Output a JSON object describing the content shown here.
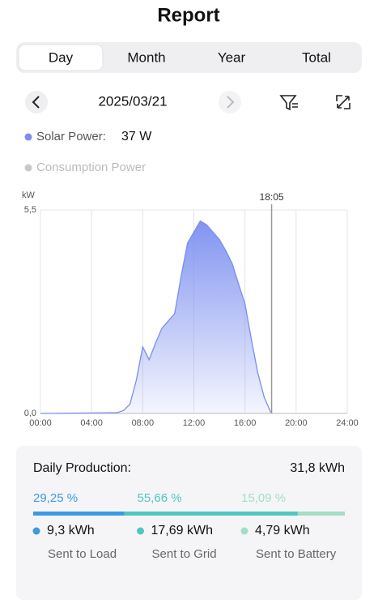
{
  "header": {
    "title": "Report"
  },
  "tabs": [
    "Day",
    "Month",
    "Year",
    "Total"
  ],
  "date": "2025/03/21",
  "legend": {
    "solar_label": "Solar Power:",
    "solar_value": "37 W",
    "consumption_label": "Consumption Power"
  },
  "chart_data": {
    "type": "area",
    "y_label": "kW",
    "x": [
      0,
      6,
      6.5,
      7,
      7.5,
      8,
      8.5,
      9,
      9.5,
      10,
      10.5,
      11,
      11.5,
      12,
      12.5,
      13,
      13.5,
      14,
      14.5,
      15,
      15.5,
      16,
      16.5,
      17,
      17.5,
      18,
      18.083
    ],
    "series": [
      {
        "name": "Solar Power",
        "color": "#7b8ef0",
        "values": [
          0,
          0.02,
          0.08,
          0.25,
          0.9,
          1.8,
          1.45,
          1.9,
          2.3,
          2.5,
          2.7,
          3.7,
          4.6,
          4.9,
          5.2,
          5.1,
          4.9,
          4.7,
          4.4,
          4.05,
          3.5,
          2.96,
          2.0,
          1.1,
          0.44,
          0.04,
          0.037
        ]
      }
    ],
    "xlim": [
      0,
      24
    ],
    "xticks": [
      {
        "value": 0,
        "label": "00:00"
      },
      {
        "value": 4,
        "label": "04:00"
      },
      {
        "value": 8,
        "label": "08:00"
      },
      {
        "value": 12,
        "label": "12:00"
      },
      {
        "value": 16,
        "label": "16:00"
      },
      {
        "value": 20,
        "label": "20:00"
      },
      {
        "value": 24,
        "label": "24:00"
      }
    ],
    "ylim": [
      0,
      5.5
    ],
    "yticks": [
      {
        "value": 0,
        "label": "0,0"
      },
      {
        "value": 5.5,
        "label": "5,5"
      }
    ],
    "grid": true,
    "cursor": {
      "value": 18.083,
      "label": "18:05"
    }
  },
  "production": {
    "title": "Daily Production:",
    "total": "31,8 kWh",
    "items": [
      {
        "percent": 29.25,
        "percent_label": "29,25 %",
        "energy": "9,3 kWh",
        "label": "Sent to Load",
        "color": "#3b9ae1"
      },
      {
        "percent": 55.66,
        "percent_label": "55,66 %",
        "energy": "17,69 kWh",
        "label": "Sent to Grid",
        "color": "#4fc7c0"
      },
      {
        "percent": 15.09,
        "percent_label": "15,09 %",
        "energy": "4,79 kWh",
        "label": "Sent to Battery",
        "color": "#a3dec4"
      }
    ]
  }
}
